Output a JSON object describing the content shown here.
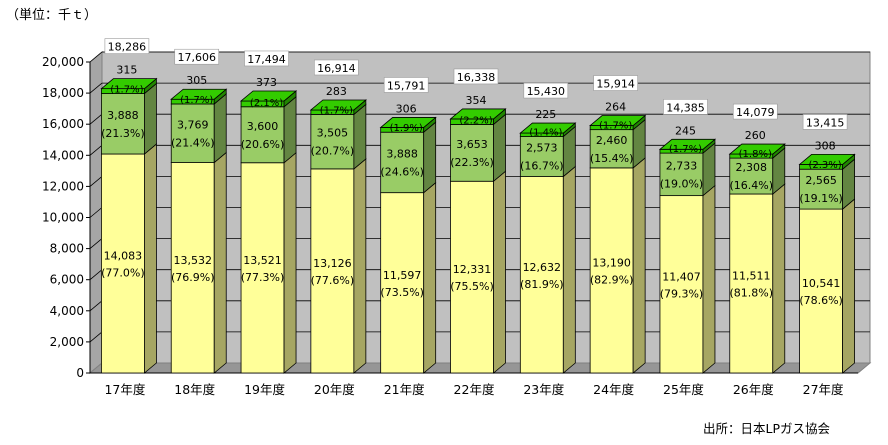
{
  "unit_label": "（単位：千ｔ）",
  "source_label": "出所：日本LPガス協会",
  "colors": {
    "bottom": "#ffff99",
    "middle": "#99cc66",
    "top": "#33cc00",
    "wall": "#c0c0c0",
    "floor": "#969696"
  },
  "chart_data": {
    "type": "bar",
    "stacked": true,
    "categories": [
      "17年度",
      "18年度",
      "19年度",
      "20年度",
      "21年度",
      "22年度",
      "23年度",
      "24年度",
      "25年度",
      "26年度",
      "27年度"
    ],
    "series": [
      {
        "values": [
          14083,
          13532,
          13521,
          13126,
          11597,
          12331,
          12632,
          13190,
          11407,
          11511,
          10541
        ],
        "shares": [
          "(77.0%)",
          "(76.9%)",
          "(77.3%)",
          "(77.6%)",
          "(73.5%)",
          "(75.5%)",
          "(81.9%)",
          "(82.9%)",
          "(79.3%)",
          "(81.8%)",
          "(78.6%)"
        ],
        "labels": [
          "14,083",
          "13,532",
          "13,521",
          "13,126",
          "11,597",
          "12,331",
          "12,632",
          "13,190",
          "11,407",
          "11,511",
          "10,541"
        ]
      },
      {
        "values": [
          3888,
          3769,
          3600,
          3505,
          3888,
          3653,
          2573,
          2460,
          2733,
          2308,
          2565
        ],
        "shares": [
          "(21.3%)",
          "(21.4%)",
          "(20.6%)",
          "(20.7%)",
          "(24.6%)",
          "(22.3%)",
          "(16.7%)",
          "(15.4%)",
          "(19.0%)",
          "(16.4%)",
          "(19.1%)"
        ],
        "labels": [
          "3,888",
          "3,769",
          "3,600",
          "3,505",
          "3,888",
          "3,653",
          "2,573",
          "2,460",
          "2,733",
          "2,308",
          "2,565"
        ]
      },
      {
        "values": [
          315,
          305,
          373,
          283,
          306,
          354,
          225,
          264,
          245,
          260,
          308
        ],
        "shares": [
          "(1.7%)",
          "(1.7%)",
          "(2.1%)",
          "(1.7%)",
          "(1.9%)",
          "(2.2%)",
          "(1.4%)",
          "(1.7%)",
          "(1.7%)",
          "(1.8%)",
          "(2.3%)"
        ],
        "labels": [
          "315",
          "305",
          "373",
          "283",
          "306",
          "354",
          "225",
          "264",
          "245",
          "260",
          "308"
        ]
      }
    ],
    "totals": [
      18286,
      17606,
      17494,
      16914,
      15791,
      16338,
      15430,
      15914,
      14385,
      14079,
      13415
    ],
    "total_labels": [
      "18,286",
      "17,606",
      "17,494",
      "16,914",
      "15,791",
      "16,338",
      "15,430",
      "15,914",
      "14,385",
      "14,079",
      "13,415"
    ],
    "yticks": [
      "0",
      "2,000",
      "4,000",
      "6,000",
      "8,000",
      "10,000",
      "12,000",
      "14,000",
      "16,000",
      "18,000",
      "20,000"
    ],
    "ylim": [
      0,
      20000
    ],
    "grid": true,
    "style": "3d"
  }
}
